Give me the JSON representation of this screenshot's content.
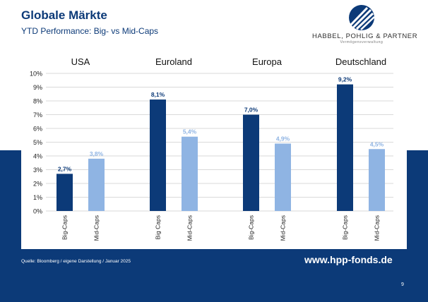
{
  "title": "Globale Märkte",
  "subtitle": "YTD Performance: Big- vs Mid-Caps",
  "logo": {
    "name": "HABBEL, POHLIG & PARTNER",
    "tagline": "Vermögensverwaltung"
  },
  "footer": {
    "source": "Quelle: Bloomberg / eigene Darstellung / Januar 2025",
    "website": "www.hpp-fonds.de",
    "page_number": "9"
  },
  "colors": {
    "navy": "#0c3a78",
    "big_caps": "#0c3a78",
    "mid_caps": "#8fb4e3"
  },
  "chart_data": {
    "type": "bar",
    "categories": [
      "USA",
      "Euroland",
      "Europa",
      "Deutschland"
    ],
    "series": [
      {
        "key": "big",
        "values": [
          2.7,
          8.1,
          7.0,
          9.2
        ],
        "value_labels": [
          "2,7%",
          "8,1%",
          "7,0%",
          "9,2%"
        ],
        "tick_labels": [
          "Big-Caps",
          "Big Caps",
          "Big-Caps",
          "Big-Caps"
        ]
      },
      {
        "key": "mid",
        "values": [
          3.8,
          5.4,
          4.9,
          4.5
        ],
        "value_labels": [
          "3,8%",
          "5,4%",
          "4,9%",
          "4,5%"
        ],
        "tick_labels": [
          "Mid-Caps",
          "Mid-Caps",
          "Mid-Caps",
          "Mid-Caps"
        ]
      }
    ],
    "y_ticks": [
      "0%",
      "1%",
      "2%",
      "3%",
      "4%",
      "5%",
      "6%",
      "7%",
      "8%",
      "9%",
      "10%"
    ],
    "ylim": [
      0,
      10
    ],
    "grid": true,
    "legend": "none"
  }
}
